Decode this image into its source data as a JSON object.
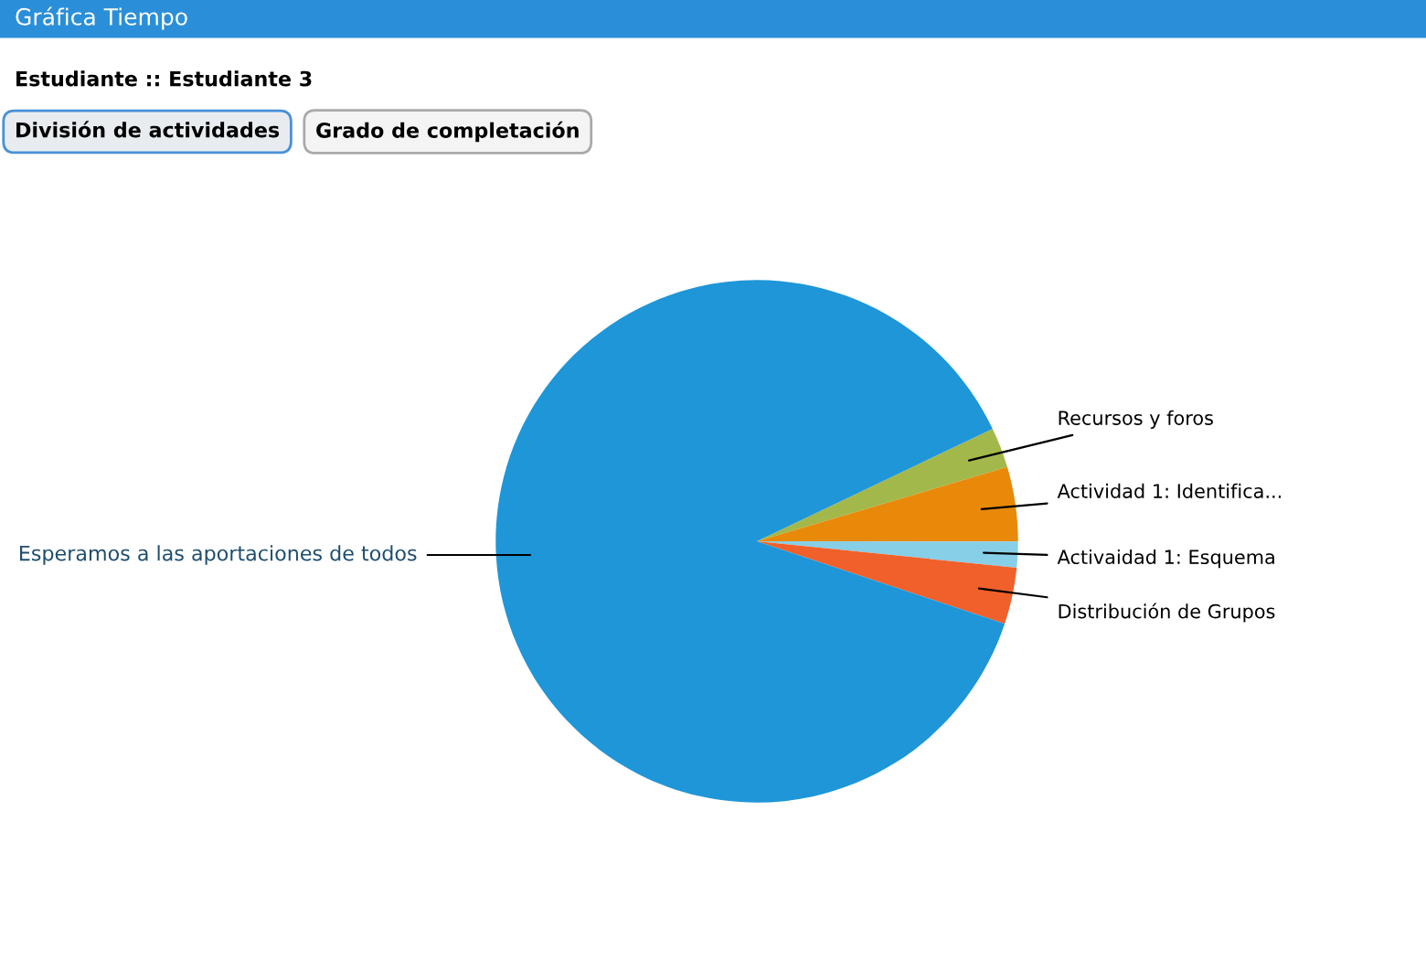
{
  "chart_data": {
    "type": "pie",
    "title": "Gráfica Tiempo",
    "subtitle": "Estudiante :: Estudiante 3",
    "annotations": [
      "División de actividades",
      "Grado de completación"
    ],
    "categories": [
      "Recursos y foros",
      "Actividad 1: Identifica...",
      "Activaidad 1: Esquema",
      "Distribución de Grupos",
      "Esperamos a las aportaciones de todos"
    ],
    "values": [
      2.5,
      4.6,
      1.6,
      3.5,
      87.8
    ],
    "colors": [
      "#a3b84a",
      "#e8890a",
      "#86cfe6",
      "#f0602a",
      "#1e96d8"
    ],
    "legend": false
  }
}
